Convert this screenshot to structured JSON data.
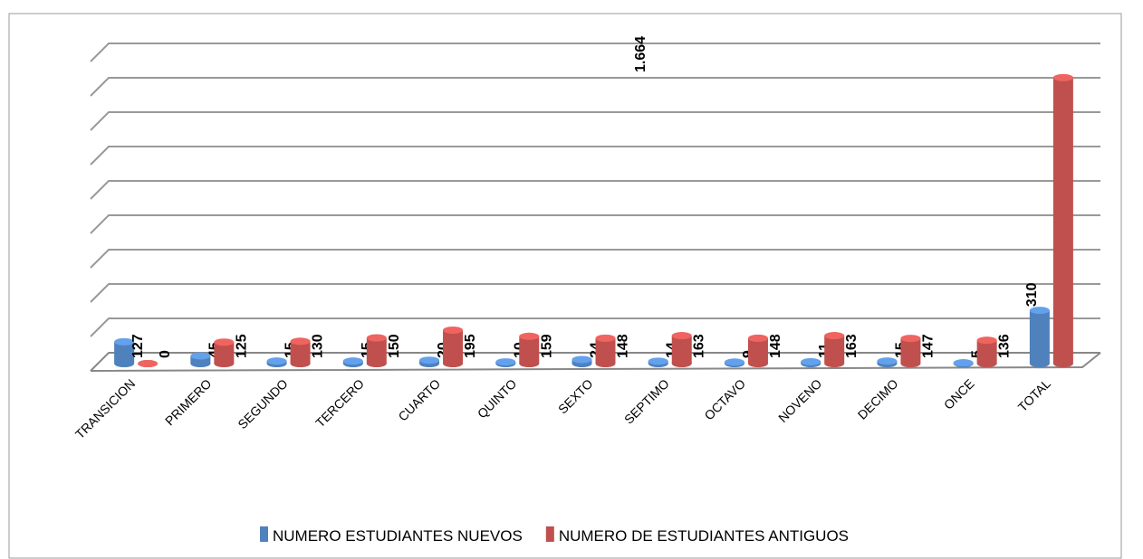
{
  "chart_data": {
    "type": "bar",
    "categories": [
      "TRANSICION",
      "PRIMERO",
      "SEGUNDO",
      "TERCERO",
      "CUARTO",
      "QUINTO",
      "SEXTO",
      "SEPTIMO",
      "OCTAVO",
      "NOVENO",
      "DECIMO",
      "ONCE",
      "TOTAL"
    ],
    "series": [
      {
        "name": "NUMERO ESTUDIANTES NUEVOS",
        "color": "#4f81bd",
        "values": [
          127,
          45,
          15,
          15,
          20,
          10,
          24,
          14,
          9,
          11,
          15,
          5,
          310
        ]
      },
      {
        "name": "NUMERO DE ESTUDIANTES ANTIGUOS",
        "color": "#c0504d",
        "values": [
          0,
          125,
          130,
          150,
          195,
          159,
          148,
          163,
          148,
          163,
          147,
          136,
          1664
        ],
        "value_labels": [
          "0",
          "125",
          "130",
          "150",
          "195",
          "159",
          "148",
          "163",
          "148",
          "163",
          "147",
          "136",
          "1.664"
        ]
      }
    ],
    "ylim": [
      0,
      1800
    ],
    "yticks": [
      0,
      200,
      400,
      600,
      800,
      1000,
      1200,
      1400,
      1600,
      1800
    ],
    "grid": true,
    "legend": "bottom"
  }
}
